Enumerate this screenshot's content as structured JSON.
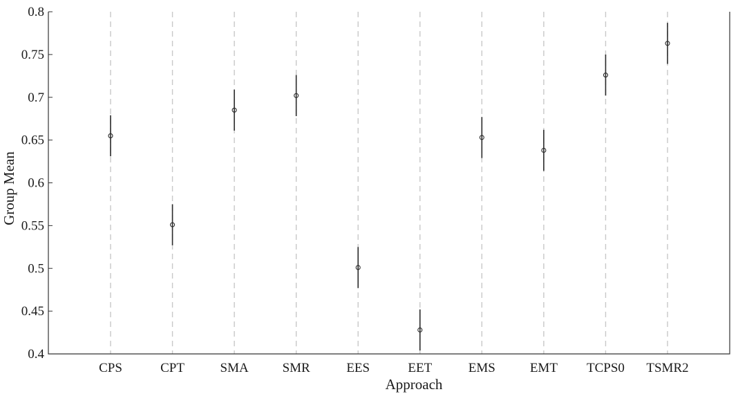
{
  "chart_data": {
    "type": "scatter",
    "subtype": "group-means-with-intervals",
    "categories": [
      "CPS",
      "CPT",
      "SMA",
      "SMR",
      "EES",
      "EET",
      "EMS",
      "EMT",
      "TCPS0",
      "TSMR2"
    ],
    "series": [
      {
        "mean": [
          0.655,
          0.551,
          0.685,
          0.702,
          0.501,
          0.428,
          0.653,
          0.638,
          0.726,
          0.763
        ],
        "lower": [
          0.631,
          0.527,
          0.661,
          0.678,
          0.477,
          0.404,
          0.629,
          0.614,
          0.702,
          0.739
        ],
        "upper": [
          0.679,
          0.575,
          0.709,
          0.726,
          0.525,
          0.452,
          0.677,
          0.662,
          0.75,
          0.787
        ]
      }
    ],
    "title": "",
    "xlabel": "Approach",
    "ylabel": "Group Mean",
    "ylim": [
      0.4,
      0.8
    ],
    "yticks": [
      0.4,
      0.45,
      0.5,
      0.55,
      0.6,
      0.65,
      0.7,
      0.75,
      0.8
    ],
    "ytick_labels": [
      "0.4",
      "0.45",
      "0.5",
      "0.55",
      "0.6",
      "0.65",
      "0.7",
      "0.75",
      "0.8"
    ],
    "grid": "vertical dashed lines at each category",
    "legend": "none",
    "colors": {
      "marker": "#2a2a2a",
      "grid": "#c8c8c8",
      "axis": "#333333"
    }
  }
}
